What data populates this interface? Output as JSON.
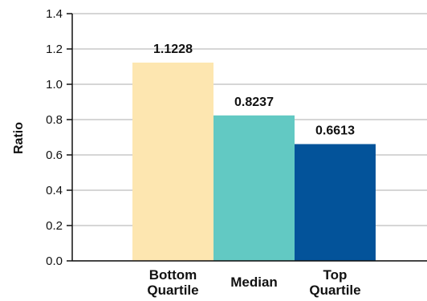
{
  "chart_data": {
    "type": "bar",
    "title": "",
    "xlabel": "",
    "ylabel": "Ratio",
    "ylim": [
      0,
      1.4
    ],
    "yticks": [
      "0.0",
      "0.2",
      "0.4",
      "0.6",
      "0.8",
      "1.0",
      "1.2",
      "1.4"
    ],
    "grid": true,
    "legend": "none",
    "categories": [
      [
        "Bottom",
        "Quartile"
      ],
      [
        "Median"
      ],
      [
        "Top",
        "Quartile"
      ]
    ],
    "values": [
      1.1228,
      0.8237,
      0.6613
    ],
    "data_labels": [
      "1.1228",
      "0.8237",
      "0.6613"
    ],
    "colors": [
      "#fde6b0",
      "#62c9c3",
      "#03539a"
    ]
  }
}
